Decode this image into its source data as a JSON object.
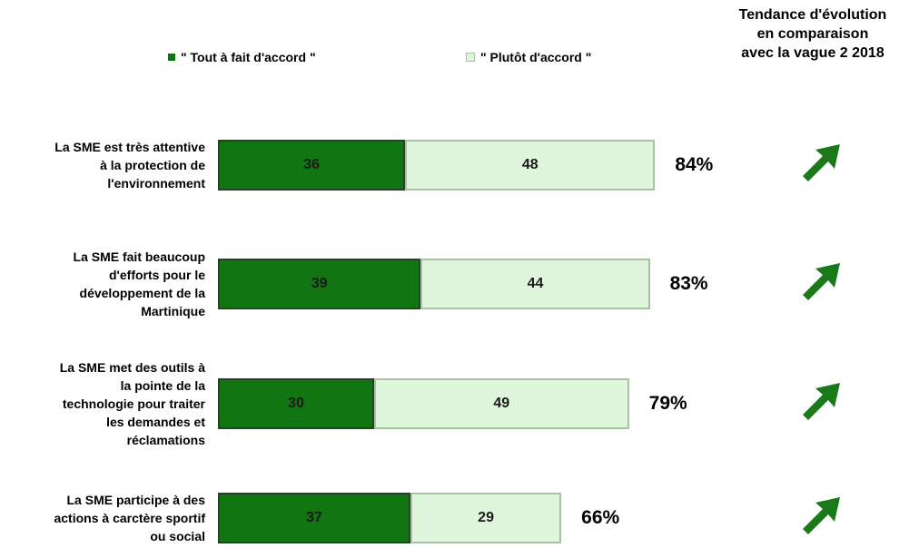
{
  "colors": {
    "tout_a_fait": "#117611",
    "plutot": "#dff5dc"
  },
  "legend": {
    "series1": "\" Tout à fait d'accord \"",
    "series2": "\" Plutôt d'accord \""
  },
  "trend_header": [
    "Tendance d'évolution",
    "en comparaison",
    "avec la vague 2 2018"
  ],
  "chart_data": {
    "type": "bar",
    "orientation": "horizontal",
    "stacked": true,
    "categories": [
      [
        "La SME est très attentive",
        "à la protection de",
        "l'environnement"
      ],
      [
        "La SME fait beaucoup",
        "d'efforts pour le",
        "développement de la",
        "Martinique"
      ],
      [
        "La SME met des outils à",
        "la pointe de la",
        "technologie pour traiter",
        "les demandes et",
        "réclamations"
      ],
      [
        "La SME participe à des",
        "actions à carctère sportif",
        "ou social"
      ]
    ],
    "series": [
      {
        "name": "\" Tout à fait d'accord \"",
        "values": [
          36,
          39,
          30,
          37
        ]
      },
      {
        "name": "\" Plutôt d'accord \"",
        "values": [
          48,
          44,
          49,
          29
        ]
      }
    ],
    "totals": [
      "84%",
      "83%",
      "79%",
      "66%"
    ],
    "trend": [
      "up-icon",
      "up-icon",
      "up-icon",
      "up-icon"
    ],
    "legend_position": "top"
  }
}
